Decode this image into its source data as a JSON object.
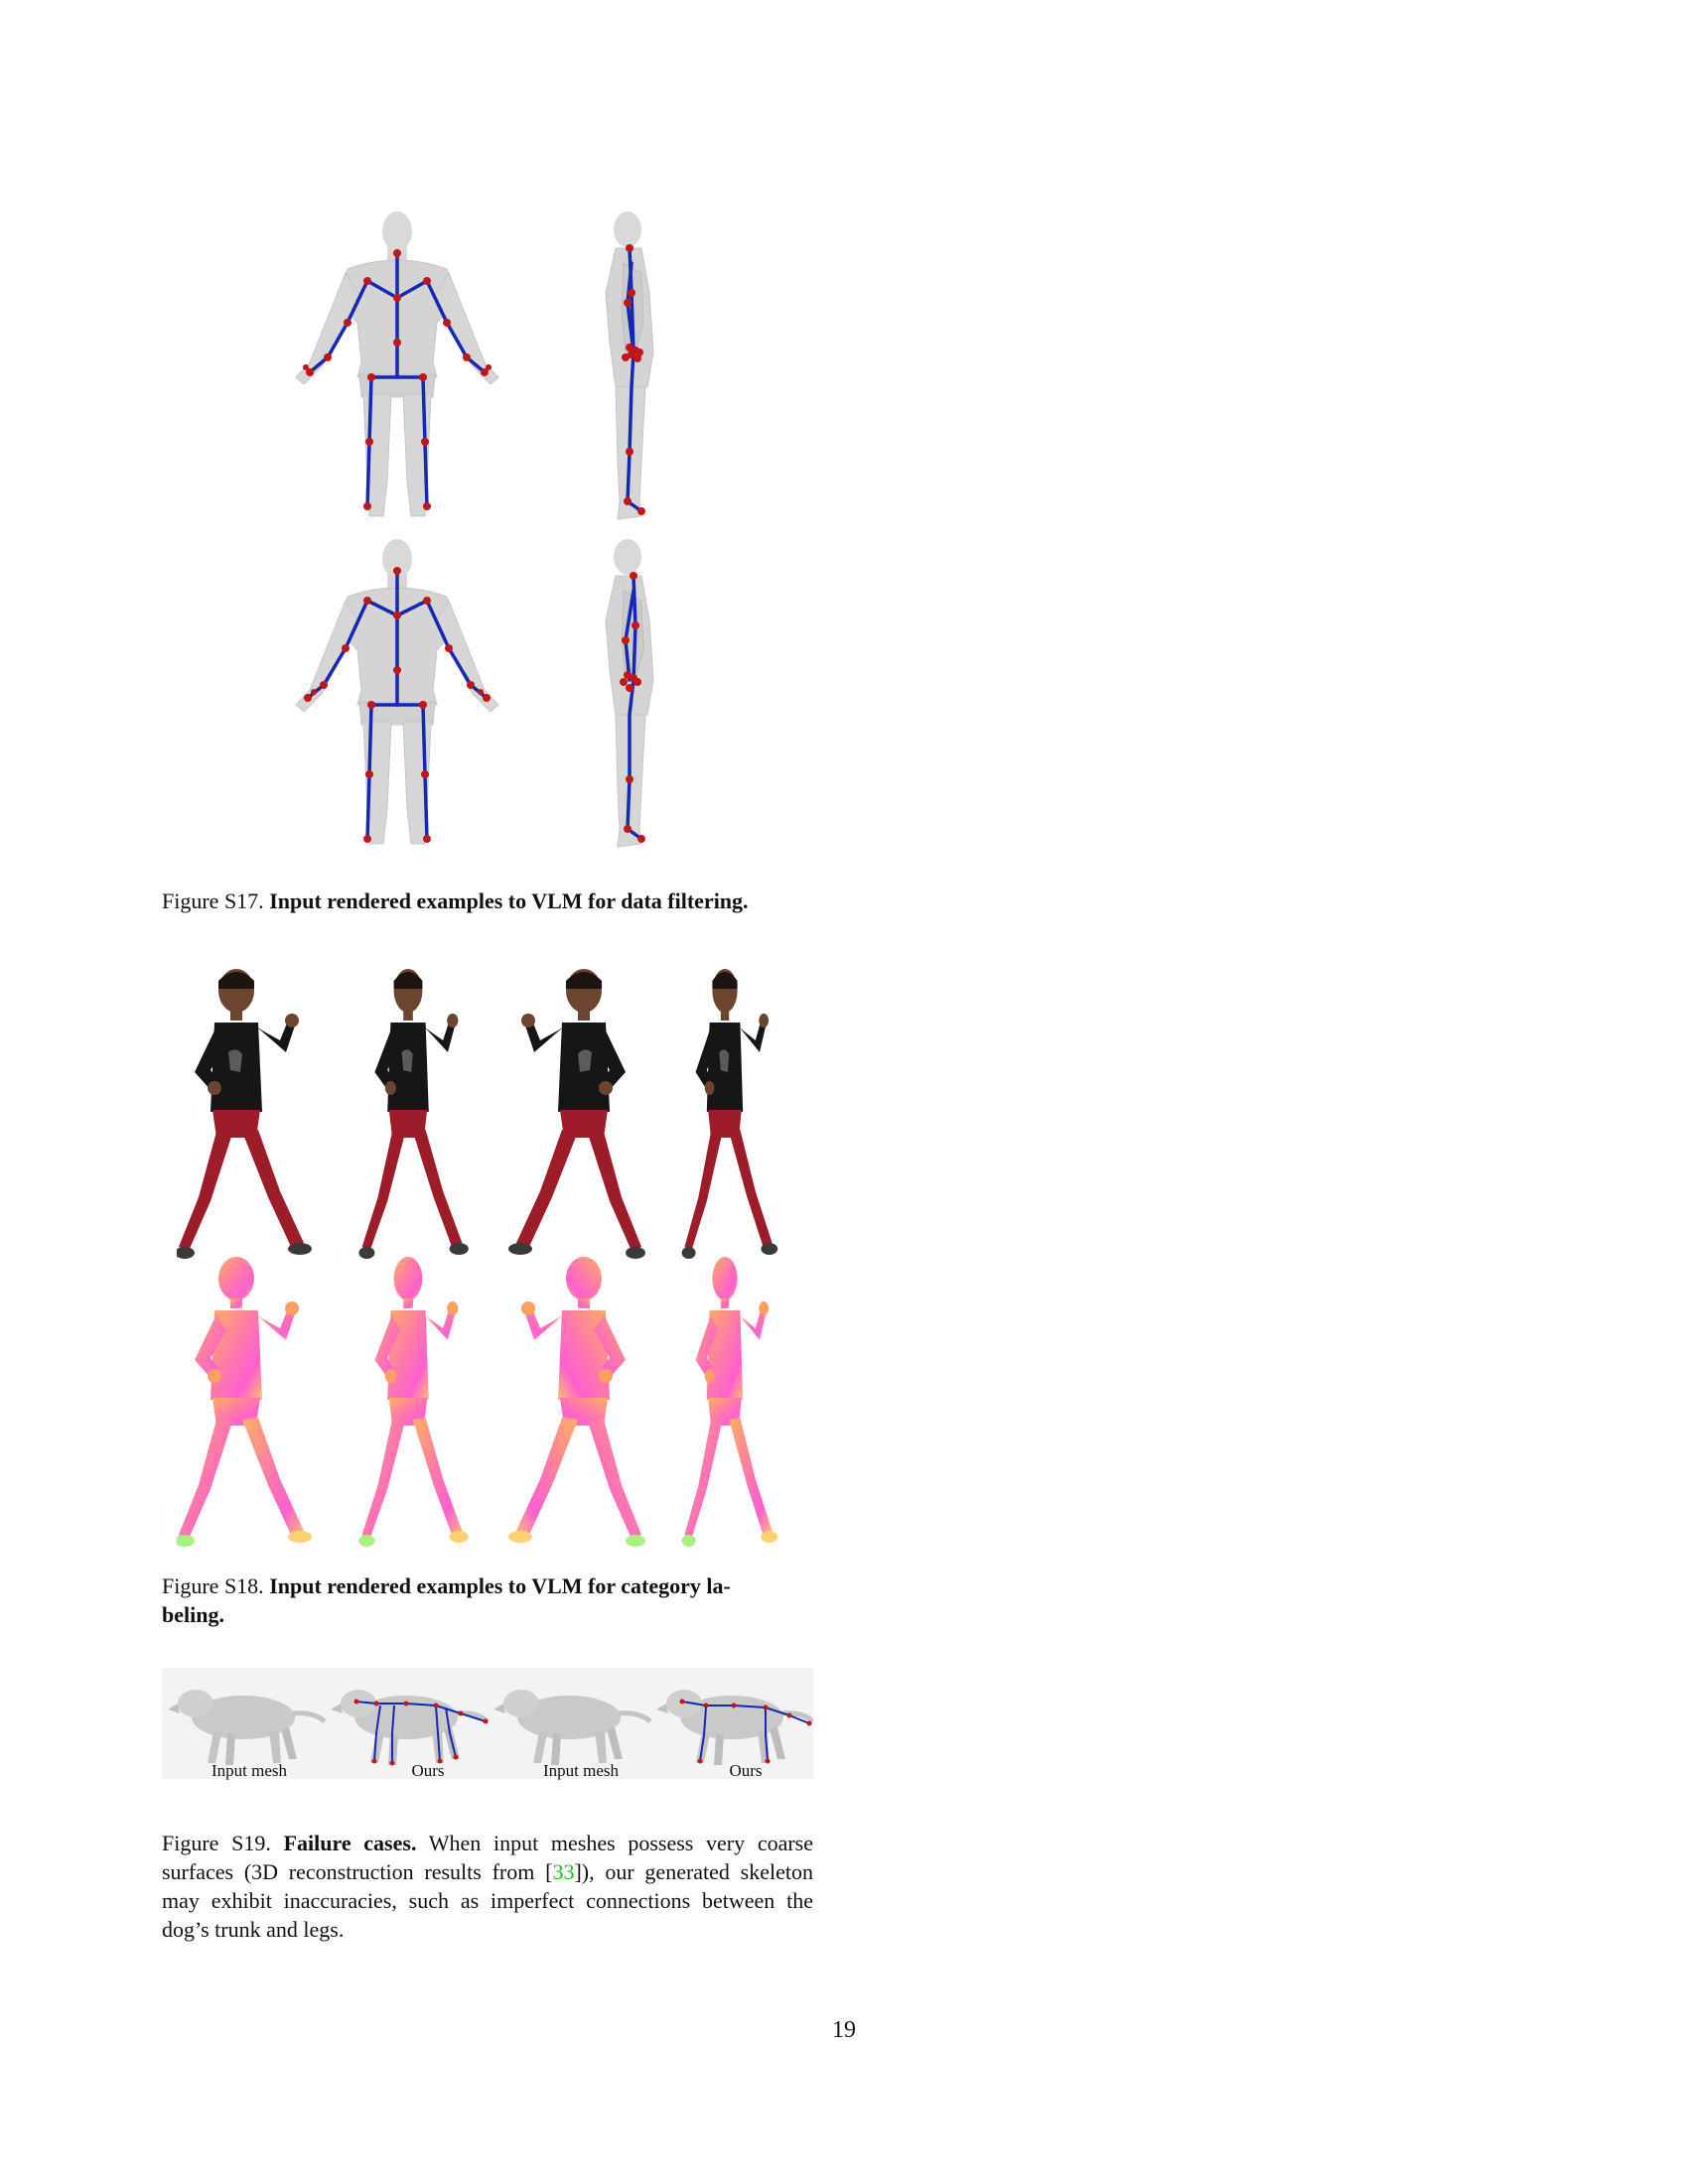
{
  "figures": {
    "s17": {
      "caption_prefix": "Figure S17.",
      "caption_title": "Input rendered examples to VLM for data filtering."
    },
    "s18": {
      "caption_prefix": "Figure S18.",
      "caption_title_line1": "Input rendered examples to VLM for category la-",
      "caption_title_line2": "beling."
    },
    "s19": {
      "panel_labels": [
        "Input mesh",
        "Ours",
        "Input mesh",
        "Ours"
      ],
      "caption_prefix": "Figure S19.",
      "caption_title": "Failure cases.",
      "caption_text_a": "When input meshes possess very coarse surfaces (3D reconstruction results from [",
      "citation": "33",
      "caption_text_b": "]), our generated skeleton may exhibit inaccuracies, such as imperfect connections between the dog’s trunk and legs."
    }
  },
  "page_number": "19",
  "colors": {
    "skeleton_bone": "#1428b4",
    "skeleton_joint": "#c01818",
    "mesh_gray": "#d4d4d4",
    "shirt": "#161616",
    "pants": "#9c1c2a",
    "skin": "#6b4530",
    "citation": "#22bb22"
  }
}
